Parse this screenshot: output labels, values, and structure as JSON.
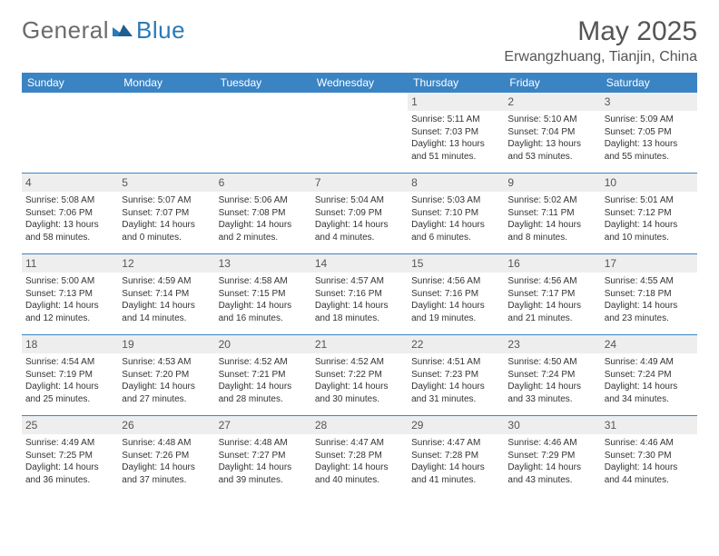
{
  "logo": {
    "text_a": "General",
    "text_b": "Blue"
  },
  "title": "May 2025",
  "location": "Erwangzhuang, Tianjin, China",
  "colors": {
    "header_bar": "#3b84c4",
    "daynum_bg": "#eeeeee",
    "text": "#333333",
    "title_text": "#555555"
  },
  "weekdays": [
    "Sunday",
    "Monday",
    "Tuesday",
    "Wednesday",
    "Thursday",
    "Friday",
    "Saturday"
  ],
  "weeks": [
    [
      {
        "n": "",
        "empty": true
      },
      {
        "n": "",
        "empty": true
      },
      {
        "n": "",
        "empty": true
      },
      {
        "n": "",
        "empty": true
      },
      {
        "n": "1",
        "sr": "5:11 AM",
        "ss": "7:03 PM",
        "dl": "13 hours and 51 minutes."
      },
      {
        "n": "2",
        "sr": "5:10 AM",
        "ss": "7:04 PM",
        "dl": "13 hours and 53 minutes."
      },
      {
        "n": "3",
        "sr": "5:09 AM",
        "ss": "7:05 PM",
        "dl": "13 hours and 55 minutes."
      }
    ],
    [
      {
        "n": "4",
        "sr": "5:08 AM",
        "ss": "7:06 PM",
        "dl": "13 hours and 58 minutes."
      },
      {
        "n": "5",
        "sr": "5:07 AM",
        "ss": "7:07 PM",
        "dl": "14 hours and 0 minutes."
      },
      {
        "n": "6",
        "sr": "5:06 AM",
        "ss": "7:08 PM",
        "dl": "14 hours and 2 minutes."
      },
      {
        "n": "7",
        "sr": "5:04 AM",
        "ss": "7:09 PM",
        "dl": "14 hours and 4 minutes."
      },
      {
        "n": "8",
        "sr": "5:03 AM",
        "ss": "7:10 PM",
        "dl": "14 hours and 6 minutes."
      },
      {
        "n": "9",
        "sr": "5:02 AM",
        "ss": "7:11 PM",
        "dl": "14 hours and 8 minutes."
      },
      {
        "n": "10",
        "sr": "5:01 AM",
        "ss": "7:12 PM",
        "dl": "14 hours and 10 minutes."
      }
    ],
    [
      {
        "n": "11",
        "sr": "5:00 AM",
        "ss": "7:13 PM",
        "dl": "14 hours and 12 minutes."
      },
      {
        "n": "12",
        "sr": "4:59 AM",
        "ss": "7:14 PM",
        "dl": "14 hours and 14 minutes."
      },
      {
        "n": "13",
        "sr": "4:58 AM",
        "ss": "7:15 PM",
        "dl": "14 hours and 16 minutes."
      },
      {
        "n": "14",
        "sr": "4:57 AM",
        "ss": "7:16 PM",
        "dl": "14 hours and 18 minutes."
      },
      {
        "n": "15",
        "sr": "4:56 AM",
        "ss": "7:16 PM",
        "dl": "14 hours and 19 minutes."
      },
      {
        "n": "16",
        "sr": "4:56 AM",
        "ss": "7:17 PM",
        "dl": "14 hours and 21 minutes."
      },
      {
        "n": "17",
        "sr": "4:55 AM",
        "ss": "7:18 PM",
        "dl": "14 hours and 23 minutes."
      }
    ],
    [
      {
        "n": "18",
        "sr": "4:54 AM",
        "ss": "7:19 PM",
        "dl": "14 hours and 25 minutes."
      },
      {
        "n": "19",
        "sr": "4:53 AM",
        "ss": "7:20 PM",
        "dl": "14 hours and 27 minutes."
      },
      {
        "n": "20",
        "sr": "4:52 AM",
        "ss": "7:21 PM",
        "dl": "14 hours and 28 minutes."
      },
      {
        "n": "21",
        "sr": "4:52 AM",
        "ss": "7:22 PM",
        "dl": "14 hours and 30 minutes."
      },
      {
        "n": "22",
        "sr": "4:51 AM",
        "ss": "7:23 PM",
        "dl": "14 hours and 31 minutes."
      },
      {
        "n": "23",
        "sr": "4:50 AM",
        "ss": "7:24 PM",
        "dl": "14 hours and 33 minutes."
      },
      {
        "n": "24",
        "sr": "4:49 AM",
        "ss": "7:24 PM",
        "dl": "14 hours and 34 minutes."
      }
    ],
    [
      {
        "n": "25",
        "sr": "4:49 AM",
        "ss": "7:25 PM",
        "dl": "14 hours and 36 minutes."
      },
      {
        "n": "26",
        "sr": "4:48 AM",
        "ss": "7:26 PM",
        "dl": "14 hours and 37 minutes."
      },
      {
        "n": "27",
        "sr": "4:48 AM",
        "ss": "7:27 PM",
        "dl": "14 hours and 39 minutes."
      },
      {
        "n": "28",
        "sr": "4:47 AM",
        "ss": "7:28 PM",
        "dl": "14 hours and 40 minutes."
      },
      {
        "n": "29",
        "sr": "4:47 AM",
        "ss": "7:28 PM",
        "dl": "14 hours and 41 minutes."
      },
      {
        "n": "30",
        "sr": "4:46 AM",
        "ss": "7:29 PM",
        "dl": "14 hours and 43 minutes."
      },
      {
        "n": "31",
        "sr": "4:46 AM",
        "ss": "7:30 PM",
        "dl": "14 hours and 44 minutes."
      }
    ]
  ],
  "labels": {
    "sunrise": "Sunrise:",
    "sunset": "Sunset:",
    "daylight": "Daylight:"
  }
}
